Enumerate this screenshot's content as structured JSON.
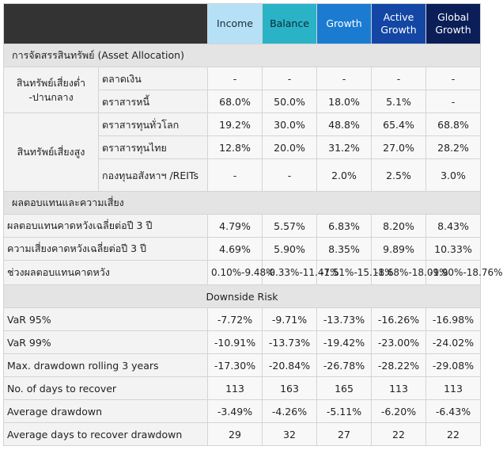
{
  "columns": [
    "Income",
    "Balance",
    "Growth",
    "Active Growth",
    "Global Growth"
  ],
  "alloc_section": "การจัดสรรสินทรัพย์ (Asset Allocation)",
  "low_group": "สินทรัพย์เสี่ยงต่ำ -ปานกลาง",
  "high_group": "สินทรัพย์เสี่ยงสูง",
  "alloc_rows": [
    {
      "label": "ตลาดเงิน",
      "values": [
        "-",
        "-",
        "-",
        "-",
        "-"
      ]
    },
    {
      "label": "ตราสารหนี้",
      "values": [
        "68.0%",
        "50.0%",
        "18.0%",
        "5.1%",
        "-"
      ]
    },
    {
      "label": "ตราสารทุนทั่วโลก",
      "values": [
        "19.2%",
        "30.0%",
        "48.8%",
        "65.4%",
        "68.8%"
      ]
    },
    {
      "label": "ตราสารทุนไทย",
      "values": [
        "12.8%",
        "20.0%",
        "31.2%",
        "27.0%",
        "28.2%"
      ]
    },
    {
      "label": "กองทุนอสังหาฯ /REITs",
      "values": [
        "-",
        "-",
        "2.0%",
        "2.5%",
        "3.0%"
      ]
    }
  ],
  "return_section": "ผลตอบแทนและความเสี่ยง",
  "return_rows": [
    {
      "label": "ผลตอบแทนคาดหวังเฉลี่ยต่อปี 3 ปี",
      "values": [
        "4.79%",
        "5.57%",
        "6.83%",
        "8.20%",
        "8.43%"
      ]
    },
    {
      "label": "ความเสี่ยงคาดหวังเฉลี่ยต่อปี 3 ปี",
      "values": [
        "4.69%",
        "5.90%",
        "8.35%",
        "9.89%",
        "10.33%"
      ]
    },
    {
      "label": "ช่วงผลตอบแทนคาดหวัง",
      "values": [
        "0.10%-9.48%",
        "-0.33%-11.47%",
        "-1.51%-15.18%",
        "-1.68%-18.09%",
        "-1.90%-18.76%"
      ]
    }
  ],
  "downside_title": "Downside Risk",
  "risk_rows": [
    {
      "label": "VaR 95%",
      "values": [
        "-7.72%",
        "-9.71%",
        "-13.73%",
        "-16.26%",
        "-16.98%"
      ]
    },
    {
      "label": "VaR 99%",
      "values": [
        "-10.91%",
        "-13.73%",
        "-19.42%",
        "-23.00%",
        "-24.02%"
      ]
    },
    {
      "label": "Max. drawdown rolling 3 years",
      "values": [
        "-17.30%",
        "-20.84%",
        "-26.78%",
        "-28.22%",
        "-29.08%"
      ]
    },
    {
      "label": "No. of days to recover",
      "values": [
        "113",
        "163",
        "165",
        "113",
        "113"
      ]
    },
    {
      "label": "Average drawdown",
      "values": [
        "-3.49%",
        "-4.26%",
        "-5.11%",
        "-6.20%",
        "-6.43%"
      ]
    },
    {
      "label": "Average days to recover drawdown",
      "values": [
        "29",
        "32",
        "27",
        "22",
        "22"
      ]
    }
  ]
}
